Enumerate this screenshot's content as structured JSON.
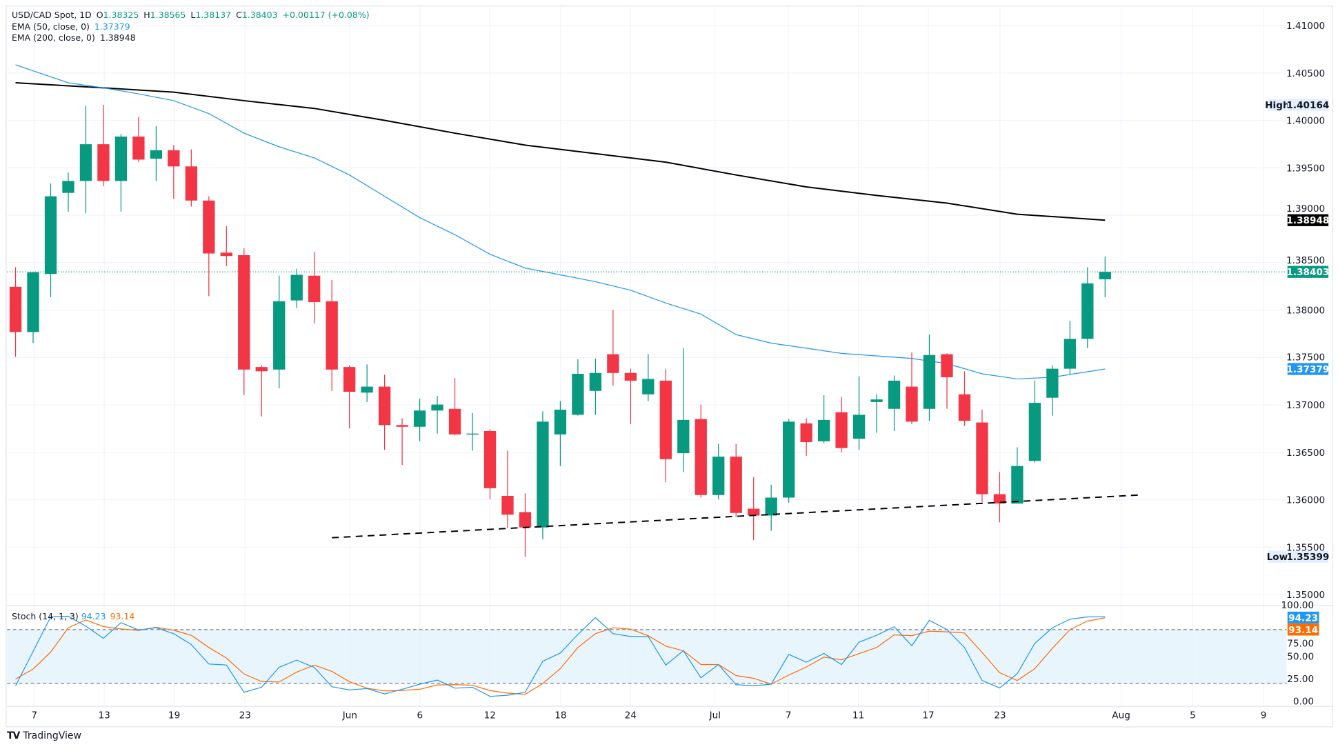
{
  "legend": {
    "symbol": "USD/CAD Spot, 1D",
    "open_label": "O",
    "open": "1.38325",
    "high_label": "H",
    "high": "1.38565",
    "low_label": "L",
    "low": "1.38137",
    "close_label": "C",
    "close": "1.38403",
    "change": "+0.00117 (+0.08%)",
    "ema50_label": "EMA (50, close, 0)",
    "ema50_value": "1.37379",
    "ema200_label": "EMA (200, close, 0)",
    "ema200_value": "1.38948"
  },
  "stoch_legend": {
    "label": "Stoch (14, 1, 3)",
    "k_value": "94.23",
    "d_value": "93.14"
  },
  "branding": {
    "logo_text": "TradingView"
  },
  "colors": {
    "up": "#089981",
    "down": "#f23645",
    "ema50": "#2196f3",
    "ema200": "#000000",
    "stoch_k": "#2196f3",
    "stoch_d": "#ff6d00",
    "band": "#e3f2fd"
  },
  "chart_data": [
    {
      "type": "candlestick",
      "title": "USD/CAD Spot, 1D",
      "ylim": [
        1.3475,
        1.4125
      ],
      "grid": true,
      "price_ticks": [
        "1.41000",
        "1.40500",
        "1.40000",
        "1.39500",
        "1.39000",
        "1.38500",
        "1.38000",
        "1.37500",
        "1.37000",
        "1.36500",
        "1.36000",
        "1.35500",
        "1.35000"
      ],
      "x_tick_labels": [
        "7",
        "13",
        "19",
        "23",
        "Jun",
        "6",
        "12",
        "18",
        "24",
        "Jul",
        "7",
        "11",
        "17",
        "23",
        "Aug",
        "5",
        "9"
      ],
      "price_labels": {
        "high_tag": "High",
        "high_value": "1.40164",
        "low_tag": "Low",
        "low_value": "1.35399",
        "ema200_value": "1.38948",
        "last_value": "1.38403",
        "ema50_value": "1.37379"
      },
      "candles": [
        {
          "date": "May 6",
          "o": 1.38246,
          "h": 1.38453,
          "l": 1.37508,
          "c": 1.37769
        },
        {
          "date": "May 7",
          "o": 1.37769,
          "h": 1.384,
          "l": 1.37652,
          "c": 1.38399
        },
        {
          "date": "May 8",
          "o": 1.38381,
          "h": 1.39335,
          "l": 1.38138,
          "c": 1.392
        },
        {
          "date": "May 9",
          "o": 1.39236,
          "h": 1.39452,
          "l": 1.39038,
          "c": 1.39362
        },
        {
          "date": "May 12",
          "o": 1.39362,
          "h": 1.40154,
          "l": 1.3902,
          "c": 1.39749
        },
        {
          "date": "May 13",
          "o": 1.39749,
          "h": 1.40164,
          "l": 1.39308,
          "c": 1.39362
        },
        {
          "date": "May 14",
          "o": 1.39362,
          "h": 1.39857,
          "l": 1.39038,
          "c": 1.3983
        },
        {
          "date": "May 15",
          "o": 1.3983,
          "h": 1.40037,
          "l": 1.3956,
          "c": 1.39587
        },
        {
          "date": "May 16",
          "o": 1.39596,
          "h": 1.39938,
          "l": 1.39362,
          "c": 1.39686
        },
        {
          "date": "May 19",
          "o": 1.39686,
          "h": 1.3974,
          "l": 1.39173,
          "c": 1.39515
        },
        {
          "date": "May 20",
          "o": 1.39515,
          "h": 1.39695,
          "l": 1.39092,
          "c": 1.39155
        },
        {
          "date": "May 21",
          "o": 1.39155,
          "h": 1.392,
          "l": 1.38147,
          "c": 1.38597
        },
        {
          "date": "May 22",
          "o": 1.38606,
          "h": 1.38885,
          "l": 1.38462,
          "c": 1.3857
        },
        {
          "date": "May 23",
          "o": 1.38579,
          "h": 1.38651,
          "l": 1.37103,
          "c": 1.37373
        },
        {
          "date": "May 26",
          "o": 1.374,
          "h": 1.37418,
          "l": 1.36878,
          "c": 1.37355
        },
        {
          "date": "May 27",
          "o": 1.37373,
          "h": 1.38363,
          "l": 1.37175,
          "c": 1.38093
        },
        {
          "date": "May 28",
          "o": 1.38102,
          "h": 1.38435,
          "l": 1.38021,
          "c": 1.38372
        },
        {
          "date": "May 29",
          "o": 1.38363,
          "h": 1.38615,
          "l": 1.37859,
          "c": 1.38084
        },
        {
          "date": "May 30",
          "o": 1.38093,
          "h": 1.38318,
          "l": 1.37148,
          "c": 1.37373
        },
        {
          "date": "Jun 2",
          "o": 1.374,
          "h": 1.37418,
          "l": 1.36752,
          "c": 1.37139
        },
        {
          "date": "Jun 3",
          "o": 1.3713,
          "h": 1.37427,
          "l": 1.37031,
          "c": 1.37193
        },
        {
          "date": "Jun 4",
          "o": 1.37193,
          "h": 1.37319,
          "l": 1.36527,
          "c": 1.36788
        },
        {
          "date": "Jun 5",
          "o": 1.36788,
          "h": 1.3686,
          "l": 1.36365,
          "c": 1.3677
        },
        {
          "date": "Jun 6",
          "o": 1.3677,
          "h": 1.37067,
          "l": 1.36617,
          "c": 1.36941
        },
        {
          "date": "Jun 9",
          "o": 1.36941,
          "h": 1.37094,
          "l": 1.36698,
          "c": 1.37004
        },
        {
          "date": "Jun 10",
          "o": 1.36959,
          "h": 1.37283,
          "l": 1.3668,
          "c": 1.36689
        },
        {
          "date": "Jun 11",
          "o": 1.36689,
          "h": 1.36914,
          "l": 1.36518,
          "c": 1.36698
        },
        {
          "date": "Jun 12",
          "o": 1.36725,
          "h": 1.36743,
          "l": 1.36005,
          "c": 1.36122
        },
        {
          "date": "Jun 13",
          "o": 1.36041,
          "h": 1.36518,
          "l": 1.35699,
          "c": 1.35843
        },
        {
          "date": "Jun 16",
          "o": 1.3587,
          "h": 1.36068,
          "l": 1.35399,
          "c": 1.35708
        },
        {
          "date": "Jun 17",
          "o": 1.35708,
          "h": 1.36932,
          "l": 1.35582,
          "c": 1.36824
        },
        {
          "date": "Jun 18",
          "o": 1.36689,
          "h": 1.3704,
          "l": 1.36356,
          "c": 1.3695
        },
        {
          "date": "Jun 19",
          "o": 1.36896,
          "h": 1.37481,
          "l": 1.36887,
          "c": 1.37328
        },
        {
          "date": "Jun 20",
          "o": 1.37148,
          "h": 1.3749,
          "l": 1.36896,
          "c": 1.37337
        },
        {
          "date": "Jun 23",
          "o": 1.37535,
          "h": 1.38,
          "l": 1.37202,
          "c": 1.37337
        },
        {
          "date": "Jun 24",
          "o": 1.37337,
          "h": 1.37382,
          "l": 1.36797,
          "c": 1.37256
        },
        {
          "date": "Jun 25",
          "o": 1.37112,
          "h": 1.37535,
          "l": 1.3704,
          "c": 1.37274
        },
        {
          "date": "Jun 26",
          "o": 1.37256,
          "h": 1.37382,
          "l": 1.36185,
          "c": 1.36428
        },
        {
          "date": "Jun 27",
          "o": 1.36491,
          "h": 1.37598,
          "l": 1.36293,
          "c": 1.36842
        },
        {
          "date": "Jun 30",
          "o": 1.36851,
          "h": 1.37004,
          "l": 1.36023,
          "c": 1.3605
        },
        {
          "date": "Jul 1",
          "o": 1.3605,
          "h": 1.3659,
          "l": 1.36005,
          "c": 1.36455
        },
        {
          "date": "Jul 2",
          "o": 1.36455,
          "h": 1.3659,
          "l": 1.35816,
          "c": 1.35861
        },
        {
          "date": "Jul 3",
          "o": 1.35906,
          "h": 1.36239,
          "l": 1.35573,
          "c": 1.35834
        },
        {
          "date": "Jul 4",
          "o": 1.35834,
          "h": 1.36158,
          "l": 1.35672,
          "c": 1.36023
        },
        {
          "date": "Jul 7",
          "o": 1.36023,
          "h": 1.36851,
          "l": 1.35969,
          "c": 1.36824
        },
        {
          "date": "Jul 8",
          "o": 1.36806,
          "h": 1.3686,
          "l": 1.36464,
          "c": 1.36608
        },
        {
          "date": "Jul 9",
          "o": 1.36617,
          "h": 1.37103,
          "l": 1.36599,
          "c": 1.36842
        },
        {
          "date": "Jul 10",
          "o": 1.36923,
          "h": 1.37085,
          "l": 1.365,
          "c": 1.36545
        },
        {
          "date": "Jul 11",
          "o": 1.36644,
          "h": 1.37301,
          "l": 1.36527,
          "c": 1.36896
        },
        {
          "date": "Jul 14",
          "o": 1.37031,
          "h": 1.37112,
          "l": 1.36707,
          "c": 1.37058
        },
        {
          "date": "Jul 15",
          "o": 1.36959,
          "h": 1.3731,
          "l": 1.36725,
          "c": 1.37256
        },
        {
          "date": "Jul 16",
          "o": 1.37193,
          "h": 1.37553,
          "l": 1.36797,
          "c": 1.36824
        },
        {
          "date": "Jul 17",
          "o": 1.36959,
          "h": 1.37742,
          "l": 1.36833,
          "c": 1.37526
        },
        {
          "date": "Jul 18",
          "o": 1.37535,
          "h": 1.37544,
          "l": 1.36959,
          "c": 1.37292
        },
        {
          "date": "Jul 21",
          "o": 1.37112,
          "h": 1.37355,
          "l": 1.36779,
          "c": 1.36833
        },
        {
          "date": "Jul 22",
          "o": 1.36815,
          "h": 1.3695,
          "l": 1.35978,
          "c": 1.36059
        },
        {
          "date": "Jul 23",
          "o": 1.36059,
          "h": 1.36293,
          "l": 1.35762,
          "c": 1.3596
        },
        {
          "date": "Jul 24",
          "o": 1.3596,
          "h": 1.36554,
          "l": 1.3596,
          "c": 1.36356
        },
        {
          "date": "Jul 25",
          "o": 1.3641,
          "h": 1.37256,
          "l": 1.36392,
          "c": 1.37022
        },
        {
          "date": "Jul 28",
          "o": 1.37076,
          "h": 1.37418,
          "l": 1.36887,
          "c": 1.37382
        },
        {
          "date": "Jul 29",
          "o": 1.37382,
          "h": 1.37886,
          "l": 1.37319,
          "c": 1.37697
        },
        {
          "date": "Jul 30",
          "o": 1.37697,
          "h": 1.38453,
          "l": 1.37598,
          "c": 1.38282
        },
        {
          "date": "Jul 31",
          "o": 1.38325,
          "h": 1.38565,
          "l": 1.38137,
          "c": 1.38403
        }
      ],
      "ema200": [
        {
          "date": "May 6",
          "v": 1.40397
        },
        {
          "date": "May 13",
          "v": 1.40343
        },
        {
          "date": "May 19",
          "v": 1.40298
        },
        {
          "date": "May 23",
          "v": 1.40208
        },
        {
          "date": "May 29",
          "v": 1.40127
        },
        {
          "date": "Jun 4",
          "v": 1.40001
        },
        {
          "date": "Jun 10",
          "v": 1.39866
        },
        {
          "date": "Jun 16",
          "v": 1.3974
        },
        {
          "date": "Jun 20",
          "v": 1.3965
        },
        {
          "date": "Jun 26",
          "v": 1.3956
        },
        {
          "date": "Jul 2",
          "v": 1.39425
        },
        {
          "date": "Jul 8",
          "v": 1.39299
        },
        {
          "date": "Jul 14",
          "v": 1.39209
        },
        {
          "date": "Jul 18",
          "v": 1.39128
        },
        {
          "date": "Jul 24",
          "v": 1.39011
        },
        {
          "date": "Jul 31",
          "v": 1.38948
        }
      ],
      "ema50": [
        {
          "date": "May 6",
          "v": 1.40586
        },
        {
          "date": "May 7",
          "v": 1.40523
        },
        {
          "date": "May 9",
          "v": 1.40397
        },
        {
          "date": "May 13",
          "v": 1.40343
        },
        {
          "date": "May 15",
          "v": 1.4028
        },
        {
          "date": "May 19",
          "v": 1.40208
        },
        {
          "date": "May 21",
          "v": 1.40073
        },
        {
          "date": "May 23",
          "v": 1.39866
        },
        {
          "date": "May 27",
          "v": 1.39722
        },
        {
          "date": "May 29",
          "v": 1.39605
        },
        {
          "date": "Jun 2",
          "v": 1.39425
        },
        {
          "date": "Jun 4",
          "v": 1.392
        },
        {
          "date": "Jun 6",
          "v": 1.38975
        },
        {
          "date": "Jun 10",
          "v": 1.38795
        },
        {
          "date": "Jun 12",
          "v": 1.38588
        },
        {
          "date": "Jun 16",
          "v": 1.38444
        },
        {
          "date": "Jun 18",
          "v": 1.38372
        },
        {
          "date": "Jun 20",
          "v": 1.383
        },
        {
          "date": "Jun 24",
          "v": 1.3821
        },
        {
          "date": "Jun 26",
          "v": 1.38075
        },
        {
          "date": "Jun 30",
          "v": 1.37958
        },
        {
          "date": "Jul 2",
          "v": 1.37742
        },
        {
          "date": "Jul 4",
          "v": 1.37652
        },
        {
          "date": "Jul 8",
          "v": 1.37598
        },
        {
          "date": "Jul 10",
          "v": 1.37544
        },
        {
          "date": "Jul 14",
          "v": 1.37517
        },
        {
          "date": "Jul 16",
          "v": 1.3749
        },
        {
          "date": "Jul 18",
          "v": 1.37436
        },
        {
          "date": "Jul 22",
          "v": 1.37328
        },
        {
          "date": "Jul 24",
          "v": 1.37274
        },
        {
          "date": "Jul 28",
          "v": 1.37292
        },
        {
          "date": "Jul 31",
          "v": 1.37379
        }
      ],
      "trendline": {
        "style": "dashed",
        "start": {
          "date": "May 30",
          "price": 1.356
        },
        "end": {
          "date": "Aug 1",
          "price": 1.36045
        }
      }
    },
    {
      "type": "line",
      "title": "Stoch (14, 1, 3)",
      "ylim": [
        0,
        100
      ],
      "y_tick_labels": [
        "100.00",
        "75.00",
        "50.00",
        "25.00",
        "0.00"
      ],
      "bands": [
        20,
        80
      ],
      "series": [
        {
          "name": "%K",
          "values": [
            17.2,
            55.6,
            94.1,
            94.9,
            83.8,
            70.3,
            87.7,
            79.5,
            82.1,
            75.4,
            63.3,
            41.5,
            40.5,
            10.0,
            15.6,
            37.9,
            45.9,
            37.7,
            16.2,
            12.6,
            14.1,
            8.2,
            13.3,
            19.0,
            23.6,
            14.6,
            15.6,
            5.4,
            6.7,
            10.0,
            44.6,
            53.8,
            74.6,
            93.3,
            75.4,
            72.3,
            72.3,
            40.3,
            56.4,
            26.2,
            41.0,
            18.5,
            17.2,
            19.0,
            52.3,
            43.6,
            53.3,
            41.0,
            65.9,
            73.6,
            83.1,
            62.0,
            90.3,
            80.0,
            60.0,
            23.1,
            14.9,
            30.8,
            64.6,
            82.0,
            91.5,
            94.1,
            94.23
          ]
        },
        {
          "name": "%D",
          "values": [
            24.9,
            35.9,
            54.9,
            82.0,
            90.8,
            83.3,
            80.8,
            79.0,
            82.6,
            79.2,
            73.6,
            60.0,
            48.2,
            30.5,
            22.0,
            21.5,
            32.6,
            40.3,
            33.3,
            21.8,
            14.6,
            11.5,
            12.0,
            13.3,
            18.2,
            18.5,
            17.9,
            11.8,
            9.0,
            7.7,
            19.7,
            36.4,
            60.0,
            75.4,
            82.0,
            80.5,
            73.1,
            61.5,
            56.4,
            41.0,
            41.0,
            28.7,
            25.6,
            19.0,
            29.2,
            38.2,
            49.2,
            46.2,
            53.1,
            60.0,
            74.1,
            73.1,
            78.2,
            77.4,
            76.2,
            54.4,
            31.8,
            23.1,
            36.4,
            59.0,
            80.0,
            89.5,
            93.14
          ]
        }
      ]
    }
  ]
}
